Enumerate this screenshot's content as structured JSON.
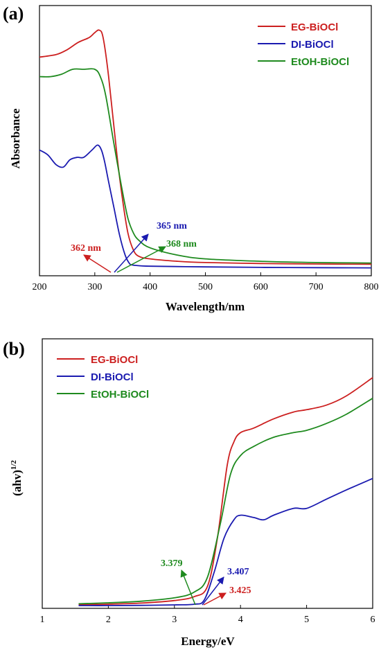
{
  "chart_data": [
    {
      "panel": "(a)",
      "type": "line",
      "xlabel": "Wavelength/nm",
      "ylabel": "Absorbance",
      "xlim": [
        200,
        800
      ],
      "ylim": [
        0,
        1
      ],
      "xticks": [
        200,
        300,
        400,
        500,
        600,
        700,
        800
      ],
      "grid": false,
      "legend_position": "top-right",
      "series": [
        {
          "name": "EG-BiOCl",
          "color": "#cc1f1f",
          "x": [
            200,
            230,
            250,
            270,
            290,
            300,
            308,
            315,
            325,
            340,
            350,
            360,
            370,
            380,
            400,
            450,
            500,
            600,
            700,
            800
          ],
          "y": [
            0.88,
            0.89,
            0.91,
            0.94,
            0.96,
            0.98,
            0.99,
            0.96,
            0.8,
            0.48,
            0.3,
            0.16,
            0.09,
            0.065,
            0.055,
            0.045,
            0.04,
            0.036,
            0.034,
            0.033
          ]
        },
        {
          "name": "DI-BiOCl",
          "color": "#1a1ab0",
          "x": [
            200,
            215,
            230,
            243,
            255,
            268,
            280,
            295,
            305,
            312,
            318,
            325,
            335,
            345,
            355,
            363,
            368,
            375,
            400,
            500,
            600,
            700,
            800
          ],
          "y": [
            0.5,
            0.48,
            0.44,
            0.43,
            0.46,
            0.47,
            0.47,
            0.5,
            0.52,
            0.5,
            0.45,
            0.37,
            0.26,
            0.15,
            0.07,
            0.035,
            0.03,
            0.028,
            0.025,
            0.022,
            0.02,
            0.019,
            0.018
          ]
        },
        {
          "name": "EtOH-BiOCl",
          "color": "#1e8a1e",
          "x": [
            200,
            220,
            240,
            260,
            280,
            300,
            310,
            320,
            335,
            350,
            360,
            370,
            380,
            400,
            450,
            500,
            600,
            700,
            800
          ],
          "y": [
            0.8,
            0.8,
            0.81,
            0.83,
            0.83,
            0.83,
            0.8,
            0.72,
            0.52,
            0.33,
            0.22,
            0.16,
            0.13,
            0.1,
            0.07,
            0.055,
            0.045,
            0.04,
            0.038
          ]
        }
      ],
      "annotations": [
        {
          "text": "362 nm",
          "color": "#cc1f1f",
          "x": 362
        },
        {
          "text": "365 nm",
          "color": "#1a1ab0",
          "x": 365
        },
        {
          "text": "368 nm",
          "color": "#1e8a1e",
          "x": 368
        }
      ]
    },
    {
      "panel": "(b)",
      "type": "line",
      "xlabel": "Energy/eV",
      "ylabel": "(ahv)",
      "ylabel_sup": "1/2",
      "xlim": [
        1,
        6
      ],
      "ylim": [
        0,
        1
      ],
      "xticks": [
        1,
        2,
        3,
        4,
        5,
        6
      ],
      "grid": false,
      "legend_position": "top-left",
      "series": [
        {
          "name": "EG-BiOCl",
          "color": "#cc1f1f",
          "x": [
            1.55,
            2.0,
            2.5,
            3.0,
            3.3,
            3.5,
            3.65,
            3.8,
            3.9,
            4.0,
            4.2,
            4.5,
            4.8,
            5.0,
            5.3,
            5.6,
            6.0
          ],
          "y": [
            0.01,
            0.012,
            0.017,
            0.028,
            0.045,
            0.09,
            0.3,
            0.62,
            0.72,
            0.76,
            0.78,
            0.82,
            0.85,
            0.86,
            0.88,
            0.92,
            1.0
          ]
        },
        {
          "name": "DI-BiOCl",
          "color": "#1a1ab0",
          "x": [
            1.55,
            2.0,
            2.5,
            3.0,
            3.3,
            3.45,
            3.6,
            3.75,
            3.9,
            4.0,
            4.2,
            4.35,
            4.5,
            4.8,
            5.0,
            5.3,
            5.6,
            6.0
          ],
          "y": [
            0.006,
            0.006,
            0.007,
            0.009,
            0.012,
            0.03,
            0.15,
            0.3,
            0.38,
            0.4,
            0.39,
            0.38,
            0.4,
            0.43,
            0.43,
            0.47,
            0.51,
            0.56
          ]
        },
        {
          "name": "EtOH-BiOCl",
          "color": "#1e8a1e",
          "x": [
            1.55,
            2.0,
            2.5,
            3.0,
            3.3,
            3.5,
            3.7,
            3.85,
            4.0,
            4.2,
            4.5,
            4.8,
            5.0,
            5.3,
            5.6,
            6.0
          ],
          "y": [
            0.014,
            0.018,
            0.025,
            0.04,
            0.065,
            0.13,
            0.37,
            0.58,
            0.66,
            0.7,
            0.74,
            0.76,
            0.77,
            0.8,
            0.84,
            0.91
          ]
        }
      ],
      "annotations": [
        {
          "text": "3.379",
          "color": "#1e8a1e",
          "x": 3.379
        },
        {
          "text": "3.407",
          "color": "#1a1ab0",
          "x": 3.407
        },
        {
          "text": "3.425",
          "color": "#cc1f1f",
          "x": 3.425
        }
      ]
    }
  ]
}
